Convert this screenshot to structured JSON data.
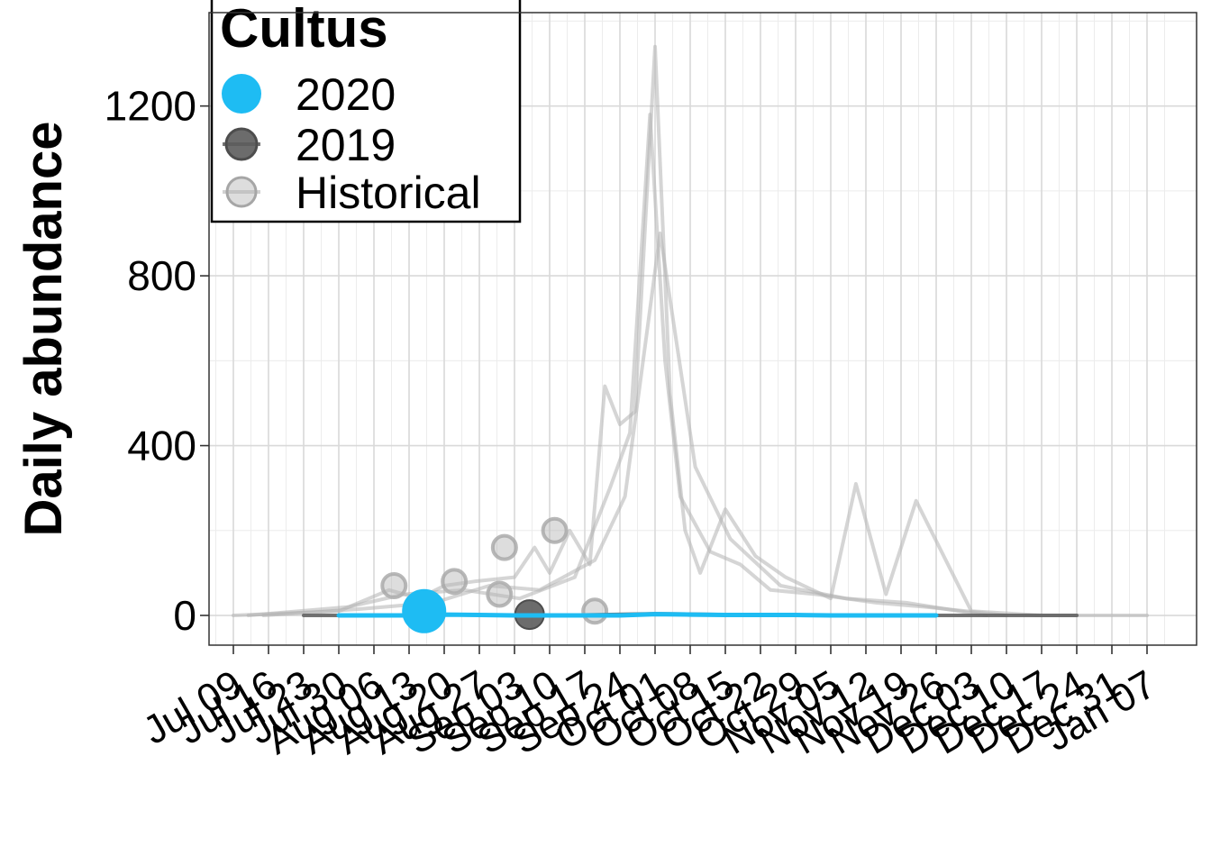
{
  "chart_data": {
    "type": "line",
    "title": "",
    "xlabel": "",
    "ylabel": "Daily abundance",
    "legend": {
      "title": "Cultus",
      "position": "top-left",
      "entries": [
        {
          "label": "2020",
          "color": "#1ebcf3"
        },
        {
          "label": "2019",
          "color": "#5c5c5c"
        },
        {
          "label": "Historical",
          "color": "#b3b3b3"
        }
      ]
    },
    "grid": true,
    "y_ticks": [
      0,
      400,
      800,
      1200
    ],
    "ylim": [
      -70,
      1420
    ],
    "x_ticks": [
      "Jul 09",
      "Jul 16",
      "Jul 23",
      "Jul 30",
      "Aug 06",
      "Aug 13",
      "Aug 20",
      "Aug 27",
      "Sep 03",
      "Sep 10",
      "Sep 17",
      "Sep 24",
      "Oct 01",
      "Oct 08",
      "Oct 15",
      "Oct 22",
      "Oct 29",
      "Nov 05",
      "Nov 12",
      "Nov 19",
      "Nov 26",
      "Dec 03",
      "Dec 10",
      "Dec 17",
      "Dec 24",
      "Dec 31",
      "Jan 07"
    ],
    "series": [
      {
        "name": "2020",
        "color": "#1ebcf3",
        "x": [
          "Jul 30",
          "Aug 06",
          "Aug 13",
          "Aug 20",
          "Aug 27",
          "Sep 03",
          "Sep 10",
          "Sep 17",
          "Sep 24",
          "Oct 01",
          "Oct 08",
          "Oct 15",
          "Oct 22",
          "Oct 29",
          "Nov 05",
          "Nov 12",
          "Nov 19",
          "Nov 26"
        ],
        "values": [
          0,
          0,
          0,
          2,
          1,
          0,
          0,
          0,
          0,
          3,
          2,
          1,
          1,
          1,
          0,
          0,
          0,
          0
        ],
        "points": [
          {
            "x": "Aug 16",
            "y": 10
          }
        ]
      },
      {
        "name": "2019",
        "color": "#5c5c5c",
        "x": [
          "Jul 23",
          "Aug 06",
          "Aug 20",
          "Sep 03",
          "Sep 17",
          "Oct 01",
          "Oct 15",
          "Oct 29",
          "Nov 12",
          "Nov 26",
          "Dec 10",
          "Dec 24"
        ],
        "values": [
          0,
          0,
          2,
          0,
          1,
          4,
          2,
          1,
          1,
          0,
          0,
          0
        ],
        "points": [
          {
            "x": "Sep 06",
            "y": 2
          }
        ]
      },
      {
        "name": "Historical",
        "color": "#b3b3b3",
        "x": [
          "Jul 09",
          "Jul 30",
          "Aug 09",
          "Aug 15",
          "Aug 20",
          "Aug 26",
          "Sep 03",
          "Sep 07",
          "Sep 10",
          "Sep 14",
          "Sep 18",
          "Sep 21",
          "Sep 24",
          "Sep 27",
          "Oct 01",
          "Oct 04",
          "Oct 07",
          "Oct 10",
          "Oct 15",
          "Oct 21",
          "Oct 27",
          "Nov 05",
          "Nov 10",
          "Nov 16",
          "Nov 22",
          "Dec 03",
          "Dec 17",
          "Jan 07"
        ],
        "values": [
          0,
          10,
          60,
          40,
          70,
          80,
          90,
          160,
          100,
          200,
          120,
          540,
          450,
          480,
          1340,
          520,
          200,
          100,
          250,
          140,
          90,
          40,
          310,
          50,
          270,
          10,
          0,
          0
        ],
        "points": [
          {
            "x": "Aug 10",
            "y": 70
          },
          {
            "x": "Aug 22",
            "y": 80
          },
          {
            "x": "Aug 31",
            "y": 50
          },
          {
            "x": "Sep 01",
            "y": 160
          },
          {
            "x": "Sep 11",
            "y": 200
          },
          {
            "x": "Sep 19",
            "y": 10
          }
        ]
      },
      {
        "name": "Historical",
        "color": "#b3b3b3",
        "x": [
          "Jul 12",
          "Aug 01",
          "Aug 12",
          "Aug 24",
          "Sep 04",
          "Sep 15",
          "Sep 22",
          "Sep 26",
          "Sep 30",
          "Oct 03",
          "Oct 06",
          "Oct 12",
          "Oct 18",
          "Oct 24",
          "Nov 02",
          "Nov 14",
          "Nov 24",
          "Dec 10"
        ],
        "values": [
          0,
          20,
          50,
          60,
          40,
          90,
          300,
          430,
          1180,
          600,
          280,
          150,
          120,
          60,
          50,
          30,
          20,
          0
        ],
        "points": []
      },
      {
        "name": "Historical",
        "color": "#b3b3b3",
        "x": [
          "Jul 15",
          "Aug 03",
          "Aug 18",
          "Aug 29",
          "Sep 08",
          "Sep 19",
          "Sep 25",
          "Oct 02",
          "Oct 09",
          "Oct 16",
          "Oct 26",
          "Nov 08",
          "Nov 20",
          "Dec 06"
        ],
        "values": [
          0,
          15,
          30,
          70,
          60,
          130,
          280,
          900,
          350,
          180,
          70,
          40,
          30,
          0
        ],
        "points": []
      }
    ]
  }
}
